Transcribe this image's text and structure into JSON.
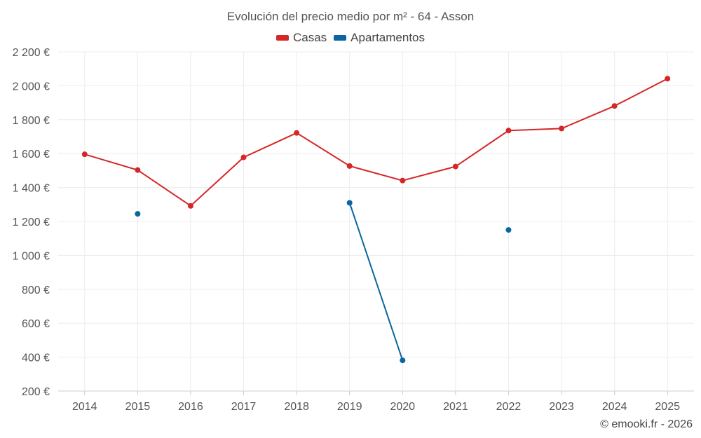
{
  "chart_data": {
    "type": "line",
    "title": "Evolución del precio medio por m² - 64 - Asson",
    "categories": [
      "2014",
      "2015",
      "2016",
      "2017",
      "2018",
      "2019",
      "2020",
      "2021",
      "2022",
      "2023",
      "2024",
      "2025"
    ],
    "ylim": [
      200,
      2200
    ],
    "yticks": [
      200,
      400,
      600,
      800,
      1000,
      1200,
      1400,
      1600,
      1800,
      2000,
      2200
    ],
    "ytick_labels": [
      "200 €",
      "400 €",
      "600 €",
      "800 €",
      "1 000 €",
      "1 200 €",
      "1 400 €",
      "1 600 €",
      "1 800 €",
      "2 000 €",
      "2 200 €"
    ],
    "grid": true,
    "legend_position": "top-center",
    "series": [
      {
        "name": "Casas",
        "color": "#d62728",
        "values": [
          1596,
          1503,
          1292,
          1578,
          1722,
          1527,
          1441,
          1524,
          1736,
          1748,
          1881,
          2042
        ]
      },
      {
        "name": "Apartamentos",
        "color": "#0a66a0",
        "values": [
          null,
          1245,
          null,
          null,
          null,
          1310,
          381,
          null,
          1150,
          null,
          null,
          null
        ]
      }
    ]
  },
  "credit": "© emooki.fr - 2026"
}
